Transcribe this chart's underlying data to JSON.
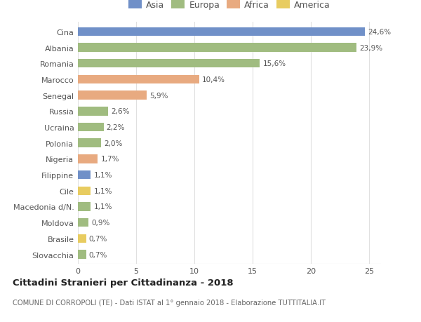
{
  "countries": [
    "Cina",
    "Albania",
    "Romania",
    "Marocco",
    "Senegal",
    "Russia",
    "Ucraina",
    "Polonia",
    "Nigeria",
    "Filippine",
    "Cile",
    "Macedonia d/N.",
    "Moldova",
    "Brasile",
    "Slovacchia"
  ],
  "values": [
    24.6,
    23.9,
    15.6,
    10.4,
    5.9,
    2.6,
    2.2,
    2.0,
    1.7,
    1.1,
    1.1,
    1.1,
    0.9,
    0.7,
    0.7
  ],
  "continents": [
    "Asia",
    "Europa",
    "Europa",
    "Africa",
    "Africa",
    "Europa",
    "Europa",
    "Europa",
    "Africa",
    "Asia",
    "America",
    "Europa",
    "Europa",
    "America",
    "Europa"
  ],
  "colors": {
    "Asia": "#7090c8",
    "Europa": "#a0bc80",
    "Africa": "#e8aa80",
    "America": "#e8cc60"
  },
  "legend_order": [
    "Asia",
    "Europa",
    "Africa",
    "America"
  ],
  "xlim": [
    0,
    26
  ],
  "xticks": [
    0,
    5,
    10,
    15,
    20,
    25
  ],
  "title": "Cittadini Stranieri per Cittadinanza - 2018",
  "subtitle": "COMUNE DI CORROPOLI (TE) - Dati ISTAT al 1° gennaio 2018 - Elaborazione TUTTITALIA.IT",
  "background_color": "#ffffff",
  "grid_color": "#e0e0e0",
  "bar_height": 0.55
}
